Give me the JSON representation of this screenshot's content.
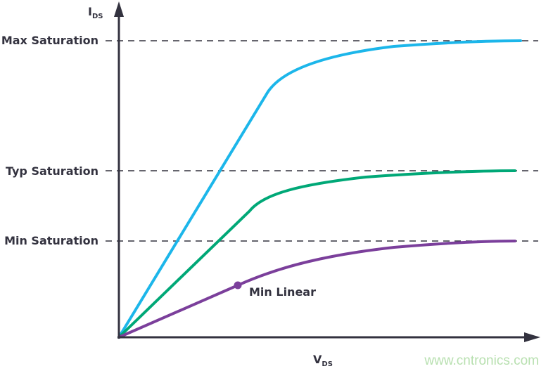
{
  "axes": {
    "y_label": "I",
    "y_label_sub": "DS",
    "x_label": "V",
    "x_label_sub": "DS"
  },
  "levels": [
    {
      "label": "Max Saturation"
    },
    {
      "label": "Typ Saturation"
    },
    {
      "label": "Min Saturation"
    }
  ],
  "curves": [
    {
      "id": "max",
      "color": "#1cb6ea"
    },
    {
      "id": "typ",
      "color": "#00a877"
    },
    {
      "id": "min",
      "color": "#7b3f9b"
    }
  ],
  "annotation": {
    "label": "Min Linear"
  },
  "colors": {
    "axis": "#33323f"
  },
  "watermark": "www.cntronics.com"
}
